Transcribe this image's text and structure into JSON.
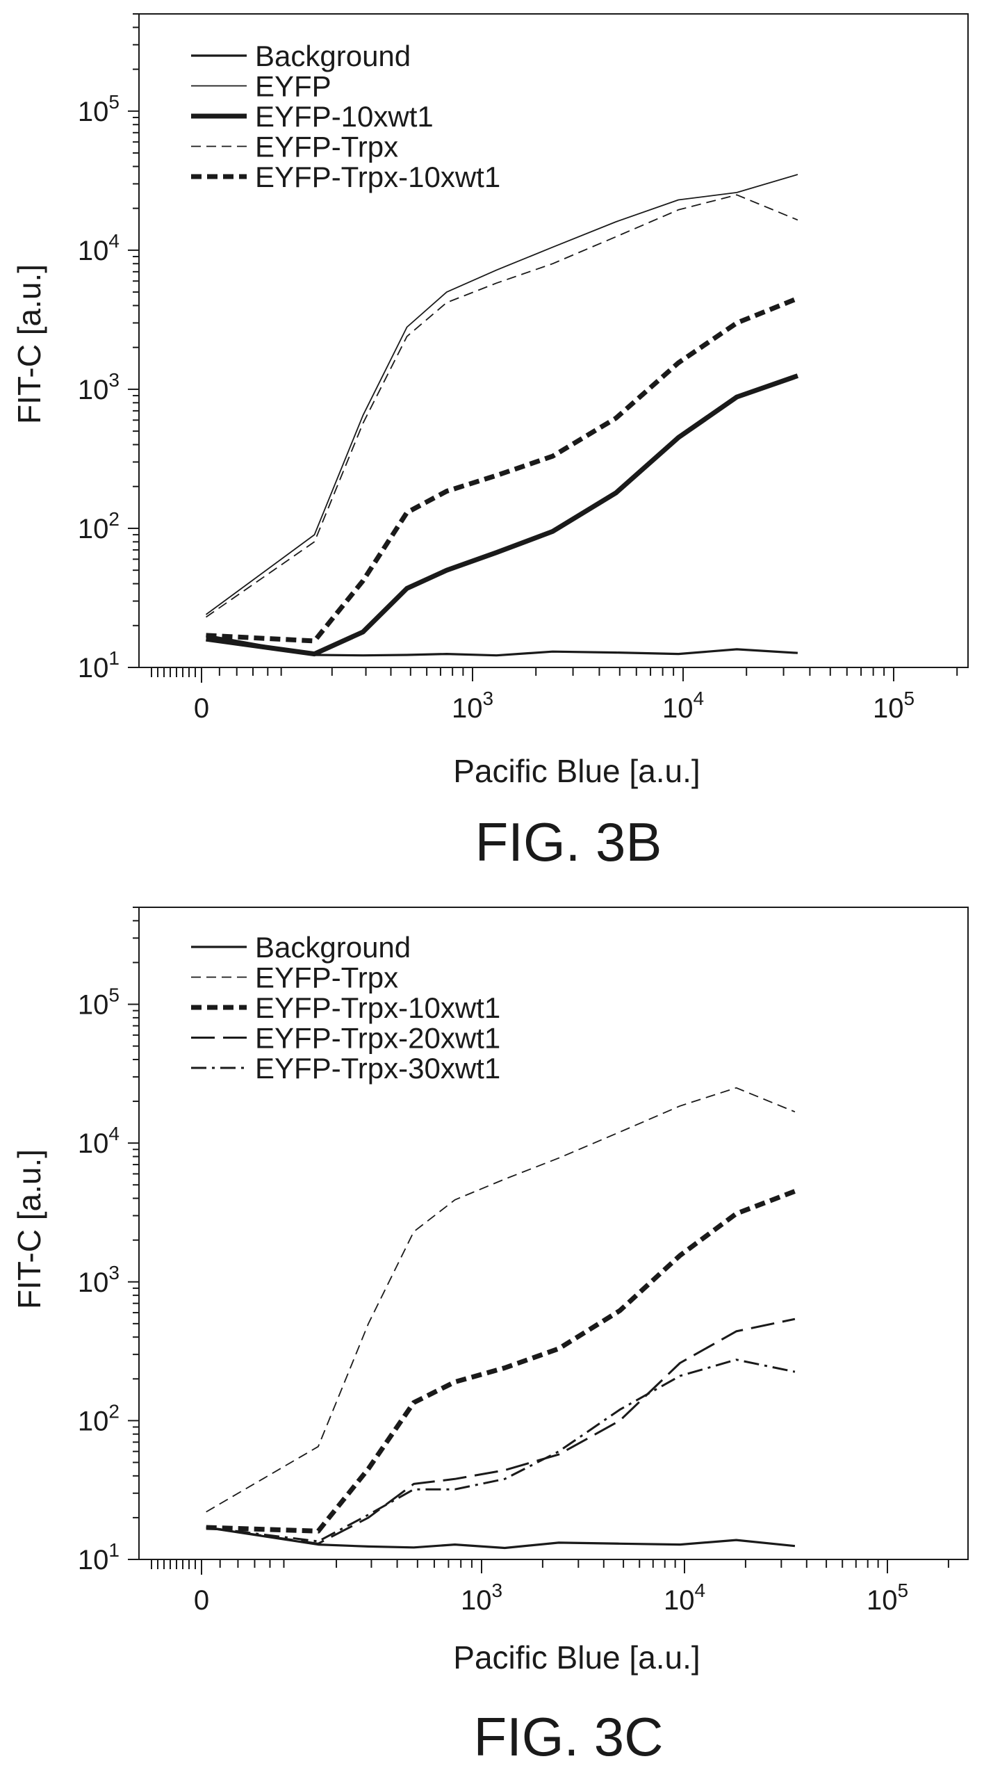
{
  "figures": [
    {
      "caption": "FIG. 3B",
      "xlabel": "Pacific Blue [a.u.]",
      "ylabel": "FIT-C [a.u.]"
    },
    {
      "caption": "FIG. 3C",
      "xlabel": "Pacific Blue [a.u.]",
      "ylabel": "FIT-C [a.u.]"
    }
  ],
  "chart_data": [
    {
      "type": "line",
      "title": "",
      "xlabel": "Pacific Blue [a.u.]",
      "ylabel": "FIT-C [a.u.]",
      "xscale": "biexponential",
      "yscale": "log",
      "xlim": [
        -300,
        250000
      ],
      "ylim": [
        10,
        500000
      ],
      "x_ticks": [
        {
          "value": 0,
          "base": "0",
          "exp": ""
        },
        {
          "value": 1000,
          "base": "10",
          "exp": "3"
        },
        {
          "value": 10000,
          "base": "10",
          "exp": "4"
        },
        {
          "value": 100000,
          "base": "10",
          "exp": "5"
        }
      ],
      "y_ticks": [
        {
          "value": 10,
          "base": "10",
          "exp": "1"
        },
        {
          "value": 100,
          "base": "10",
          "exp": "2"
        },
        {
          "value": 1000,
          "base": "10",
          "exp": "3"
        },
        {
          "value": 10000,
          "base": "10",
          "exp": "4"
        },
        {
          "value": 100000,
          "base": "10",
          "exp": "5"
        }
      ],
      "grid": false,
      "legend_position": "top-left",
      "x": [
        5,
        160,
        290,
        480,
        750,
        1300,
        2400,
        4800,
        9500,
        18000,
        35000
      ],
      "series": [
        {
          "name": "Background",
          "style": "solid-medium",
          "values": [
            17,
            12.3,
            12.2,
            12.3,
            12.5,
            12.2,
            13,
            12.8,
            12.5,
            13.5,
            12.7
          ]
        },
        {
          "name": "EYFP",
          "style": "solid-thin",
          "values": [
            24,
            90,
            650,
            2800,
            5000,
            7200,
            10500,
            16000,
            23000,
            26000,
            35000
          ]
        },
        {
          "name": "EYFP-10xwt1",
          "style": "solid-thick",
          "values": [
            16,
            12.5,
            18,
            37,
            50,
            67,
            95,
            180,
            450,
            880,
            1250
          ]
        },
        {
          "name": "EYFP-Trpx",
          "style": "dash-thin",
          "values": [
            23,
            80,
            570,
            2400,
            4200,
            5800,
            8000,
            12500,
            19500,
            25000,
            16500
          ]
        },
        {
          "name": "EYFP-Trpx-10xwt1",
          "style": "dash-thick",
          "values": [
            17,
            15.5,
            42,
            130,
            185,
            240,
            330,
            620,
            1550,
            3000,
            4500
          ]
        }
      ]
    },
    {
      "type": "line",
      "title": "",
      "xlabel": "Pacific Blue [a.u.]",
      "ylabel": "FIT-C [a.u.]",
      "xscale": "biexponential",
      "yscale": "log",
      "xlim": [
        -300,
        250000
      ],
      "ylim": [
        10,
        500000
      ],
      "x_ticks": [
        {
          "value": 0,
          "base": "0",
          "exp": ""
        },
        {
          "value": 1000,
          "base": "10",
          "exp": "3"
        },
        {
          "value": 10000,
          "base": "10",
          "exp": "4"
        },
        {
          "value": 100000,
          "base": "10",
          "exp": "5"
        }
      ],
      "y_ticks": [
        {
          "value": 10,
          "base": "10",
          "exp": "1"
        },
        {
          "value": 100,
          "base": "10",
          "exp": "2"
        },
        {
          "value": 1000,
          "base": "10",
          "exp": "3"
        },
        {
          "value": 10000,
          "base": "10",
          "exp": "4"
        },
        {
          "value": 100000,
          "base": "10",
          "exp": "5"
        }
      ],
      "grid": false,
      "legend_position": "top-left",
      "x": [
        5,
        160,
        290,
        480,
        750,
        1300,
        2400,
        4800,
        9500,
        18000,
        35000
      ],
      "series": [
        {
          "name": "Background",
          "style": "solid-medium",
          "values": [
            17,
            12.8,
            12.4,
            12.2,
            12.8,
            12.1,
            13.2,
            13,
            12.8,
            13.8,
            12.5
          ]
        },
        {
          "name": "EYFP-Trpx",
          "style": "dash-thin",
          "values": [
            22,
            65,
            500,
            2300,
            3900,
            5500,
            7800,
            12000,
            18500,
            25000,
            16800
          ]
        },
        {
          "name": "EYFP-Trpx-10xwt1",
          "style": "dash-thick",
          "values": [
            17,
            16,
            45,
            135,
            190,
            240,
            330,
            620,
            1550,
            3100,
            4500
          ]
        },
        {
          "name": "EYFP-Trpx-20xwt1",
          "style": "longdash",
          "values": [
            17,
            13,
            20,
            35,
            38,
            44,
            57,
            100,
            260,
            440,
            540
          ]
        },
        {
          "name": "EYFP-Trpx-30xwt1",
          "style": "dashdot",
          "values": [
            17,
            13.5,
            21,
            32,
            32,
            38,
            60,
            120,
            210,
            275,
            225
          ]
        }
      ]
    }
  ]
}
